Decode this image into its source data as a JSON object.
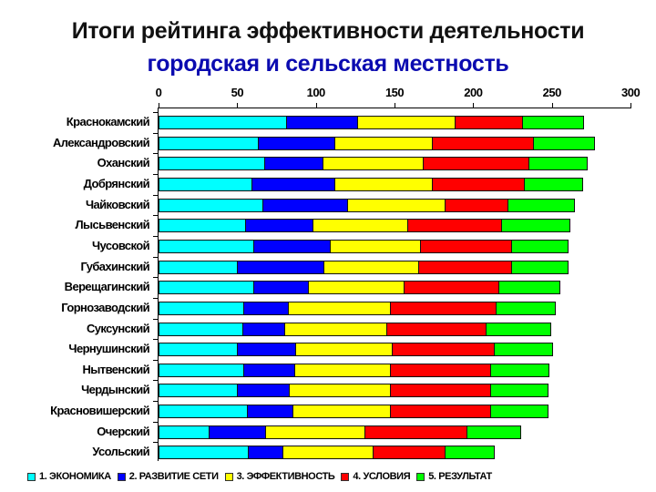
{
  "header": {
    "title": "Итоги рейтинга эффективности деятельности",
    "subtitle": "городская и сельская местность"
  },
  "chart_data": {
    "type": "bar",
    "orientation": "horizontal",
    "stacked": true,
    "title": "Итоги рейтинга эффективности деятельности",
    "subtitle": "городская и сельская местность",
    "xlabel": "",
    "ylabel": "",
    "xlim": [
      0,
      300
    ],
    "x_ticks": [
      "0",
      "50",
      "100",
      "150",
      "200",
      "250",
      "300"
    ],
    "x_axis_position": "top",
    "grid": false,
    "legend_position": "bottom",
    "categories": [
      "Краснокамский",
      "Александровский",
      "Оханский",
      "Добрянский",
      "Чайковский",
      "Лысьвенский",
      "Чусовской",
      "Губахинский",
      "Верещагинский",
      "Горнозаводский",
      "Суксунский",
      "Чернушинский",
      "Нытвенский",
      "Чердынский",
      "Красновишерский",
      "Очерский",
      "Усольский"
    ],
    "series": [
      {
        "name": "1. ЭКОНОМИКА",
        "color": "#00ffff",
        "values": [
          81,
          63,
          67,
          59,
          66,
          55,
          60,
          50,
          60,
          54,
          53,
          50,
          54,
          50,
          56,
          32,
          57
        ]
      },
      {
        "name": "2. РАЗВИТИЕ СЕТИ",
        "color": "#0000ff",
        "values": [
          45,
          49,
          37,
          53,
          54,
          43,
          49,
          55,
          35,
          28,
          27,
          37,
          32,
          33,
          29,
          36,
          22
        ]
      },
      {
        "name": "3. ЭФФЕКТИВНОСТЬ",
        "color": "#ffff00",
        "values": [
          62,
          62,
          64,
          62,
          62,
          60,
          57,
          60,
          61,
          65,
          65,
          61,
          61,
          64,
          62,
          63,
          57
        ]
      },
      {
        "name": "4. УСЛОВИЯ",
        "color": "#ff0000",
        "values": [
          43,
          64,
          67,
          58,
          40,
          60,
          58,
          59,
          60,
          67,
          63,
          65,
          64,
          64,
          64,
          65,
          46
        ]
      },
      {
        "name": "5. РЕЗУЛЬТАТ",
        "color": "#00ff00",
        "values": [
          39,
          39,
          37,
          37,
          42,
          43,
          36,
          36,
          39,
          38,
          41,
          37,
          37,
          36,
          36,
          34,
          31
        ]
      }
    ]
  }
}
